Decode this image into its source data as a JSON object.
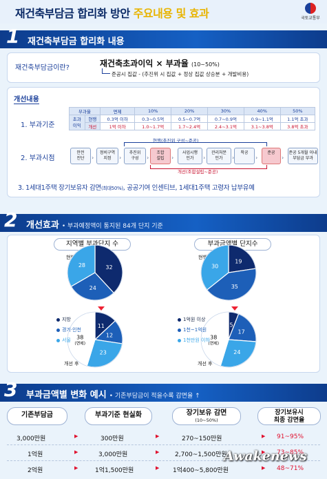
{
  "header": {
    "title_part1": "재건축부담금 합리화 방안 ",
    "title_part2": "주요내용 및 효과",
    "logo_text": "국토교통부"
  },
  "section1": {
    "number": "1",
    "title": "재건축부담금 합리화 내용",
    "question": "재건축부담금이란?",
    "formula_main": "재건축초과이익 × 부과율",
    "formula_range": "(10~50%)",
    "formula_sub": "준공시 집값 - (추진위 시 집값 + 정상 집값 상승분 + 개발비용)",
    "improve_label": "개선내용",
    "item1_label": "1. 부과기준",
    "table": {
      "header": [
        "부과율",
        "면제",
        "10%",
        "20%",
        "30%",
        "40%",
        "50%"
      ],
      "rowhead": "초과\n이익",
      "row1_name": "현행",
      "row1": [
        "0.3억 이하",
        "0.3~0.5억",
        "0.5~0.7억",
        "0.7~0.9억",
        "0.9~1.1억",
        "1.1억 초과"
      ],
      "row2_name": "개선",
      "row2": [
        "1억 이하",
        "1.0~1.7억",
        "1.7~2.4억",
        "2.4~3.1억",
        "3.1~3.8억",
        "3.8억 초과"
      ]
    },
    "item2_label": "2. 부과시점",
    "flow_current": "현행(추진위 구성~준공)",
    "flow_improved": "개선(조합설립~준공)",
    "flow": [
      {
        "l1": "안전",
        "l2": "진단"
      },
      {
        "l1": "정비구역",
        "l2": "지정"
      },
      {
        "l1": "추진위",
        "l2": "구성"
      },
      {
        "l1": "조합",
        "l2": "설립"
      },
      {
        "l1": "사업시행",
        "l2": "인가"
      },
      {
        "l1": "관리처분",
        "l2": "인가"
      },
      {
        "l1": "착공",
        "l2": ""
      },
      {
        "l1": "준공",
        "l2": ""
      },
      {
        "l1": "준공 5개월 이내",
        "l2": "부담금 부과"
      }
    ],
    "item3_a": "3. 1세대1주택 장기보유자 감면",
    "item3_b": "(최대50%)",
    "item3_c": ", 공공기여 인센티브, 1세대1주택 고령자 납부유예"
  },
  "section2": {
    "number": "2",
    "title": "개선효과",
    "subtitle": "• 부과예정액이 통지된 84개 단지 기준",
    "chart_titles": [
      "지역별 부과단지 수",
      "부과금액별 단지수"
    ],
    "current_label": "현행",
    "after_label": "개선 후",
    "exempt_label": "(면제)",
    "legend_left": [
      "지방",
      "경기·인천",
      "서울"
    ],
    "legend_right": [
      "1억원 이상",
      "1천~1억원",
      "1천만원 이하"
    ]
  },
  "chart_data": [
    {
      "type": "pie",
      "title": "지역별 부과단지 수",
      "series": [
        {
          "name": "현행",
          "labels": [
            "지방",
            "경기·인천",
            "서울"
          ],
          "values": [
            32,
            24,
            28
          ]
        },
        {
          "name": "개선 후",
          "labels": [
            "지방",
            "경기·인천",
            "서울",
            "면제"
          ],
          "values": [
            11,
            12,
            23,
            38
          ]
        }
      ]
    },
    {
      "type": "pie",
      "title": "부과금액별 단지수",
      "series": [
        {
          "name": "현행",
          "labels": [
            "1억원 이상",
            "1천~1억원",
            "1천만원 이하"
          ],
          "values": [
            19,
            35,
            30
          ]
        },
        {
          "name": "개선 후",
          "labels": [
            "1억원 이상",
            "1천~1억원",
            "1천만원 이하",
            "면제"
          ],
          "values": [
            5,
            17,
            24,
            38
          ]
        }
      ]
    }
  ],
  "colors": {
    "dark": "#0e2a6e",
    "mid": "#1d5fb8",
    "light": "#3aa6e8",
    "exempt": "#ffffff",
    "accent_red": "#e0102e"
  },
  "section3": {
    "number": "3",
    "title": "부과금액별 변화 예시",
    "subtitle": "• 기존부담금이 적을수록 감면율 ↑",
    "headers": {
      "h1": "기존부담금",
      "h2": "부과기준 현실화",
      "h3": "장기보유 감면",
      "h3_sub": "(10~50%)",
      "h4_l1": "장기보유시",
      "h4_l2": "최종 감면율"
    },
    "rows": [
      {
        "base": "3,000만원",
        "realistic": "300만원",
        "long": "270~150만원",
        "rate": "91~95%"
      },
      {
        "base": "1억원",
        "realistic": "3,000만원",
        "long": "2,700~1,500만원",
        "rate": "73~85%"
      },
      {
        "base": "2억원",
        "realistic": "1억1,500만원",
        "long": "1억400~5,800만원",
        "rate": "48~71%"
      }
    ],
    "watermark": "Awakenews"
  }
}
